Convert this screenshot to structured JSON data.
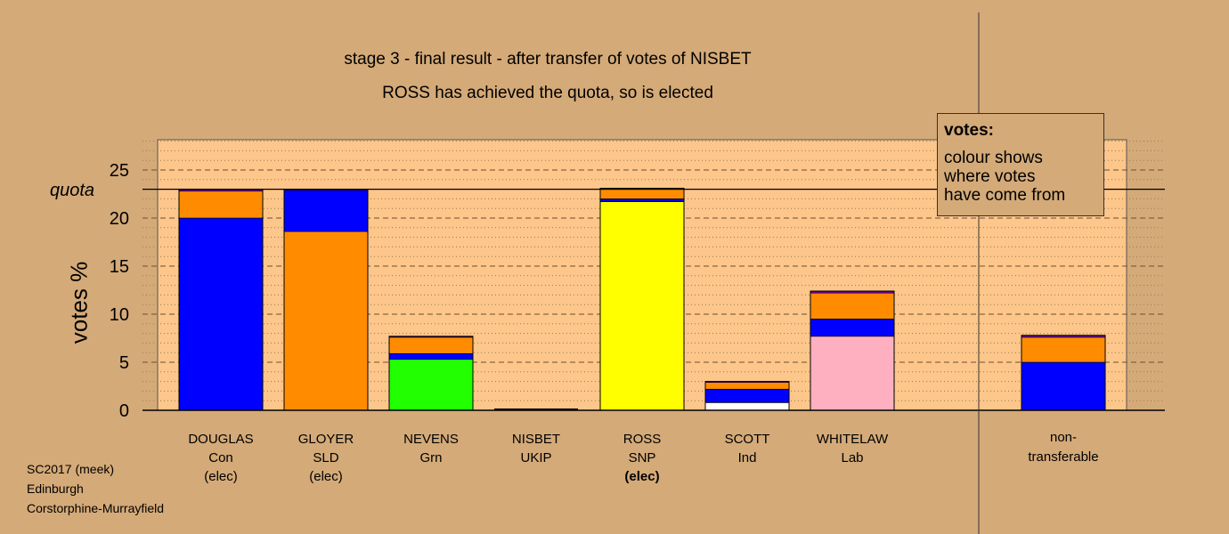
{
  "title": "stage 3 - final result - after transfer of votes of NISBET",
  "subtitle": "ROSS has achieved the quota, so is elected",
  "legend": {
    "heading": "votes:",
    "lines": [
      "colour shows",
      "where votes",
      "have come from"
    ]
  },
  "footer": [
    "SC2017 (meek)",
    "Edinburgh",
    "Corstorphine-Murrayfield"
  ],
  "colors": {
    "background": "#d4aa78",
    "plot_band": "#fdc68a",
    "Con": "#0000ff",
    "SLD": "#ff8c00",
    "Grn": "#22ff00",
    "SNP": "#ffff00",
    "Lab": "#ffb0c0",
    "Ind": "#ffffff",
    "UKIP": "#7a00a0"
  },
  "chart_data": {
    "type": "bar",
    "stacked": true,
    "ylabel": "votes %",
    "ylim": [
      0,
      28
    ],
    "yticks": [
      0,
      5,
      10,
      15,
      20,
      25
    ],
    "quota": 23.0,
    "quota_label": "quota",
    "categories": [
      {
        "name": "DOUGLAS",
        "party": "Con",
        "status": "(elec)",
        "status_bold": false
      },
      {
        "name": "GLOYER",
        "party": "SLD",
        "status": "(elec)",
        "status_bold": false
      },
      {
        "name": "NEVENS",
        "party": "Grn",
        "status": "",
        "status_bold": false
      },
      {
        "name": "NISBET",
        "party": "UKIP",
        "status": "",
        "status_bold": false
      },
      {
        "name": "ROSS",
        "party": "SNP",
        "status": "(elec)",
        "status_bold": true
      },
      {
        "name": "SCOTT",
        "party": "Ind",
        "status": "",
        "status_bold": false
      },
      {
        "name": "WHITELAW",
        "party": "Lab",
        "status": "",
        "status_bold": false
      }
    ],
    "bars": [
      {
        "segments": [
          {
            "from": "Con",
            "value": 20.0
          },
          {
            "from": "SLD",
            "value": 2.8
          },
          {
            "from": "UKIP",
            "value": 0.2
          }
        ]
      },
      {
        "segments": [
          {
            "from": "SLD",
            "value": 18.6
          },
          {
            "from": "Con",
            "value": 4.3
          },
          {
            "from": "UKIP",
            "value": 0.1
          }
        ]
      },
      {
        "segments": [
          {
            "from": "Grn",
            "value": 5.3
          },
          {
            "from": "Con",
            "value": 0.6
          },
          {
            "from": "SLD",
            "value": 1.7
          },
          {
            "from": "UKIP",
            "value": 0.1
          }
        ]
      },
      {
        "segments": []
      },
      {
        "segments": [
          {
            "from": "SNP",
            "value": 21.7
          },
          {
            "from": "Con",
            "value": 0.3
          },
          {
            "from": "SLD",
            "value": 1.0
          },
          {
            "from": "UKIP",
            "value": 0.1
          }
        ]
      },
      {
        "segments": [
          {
            "from": "Ind",
            "value": 0.8
          },
          {
            "from": "Con",
            "value": 1.4
          },
          {
            "from": "SLD",
            "value": 0.7
          },
          {
            "from": "UKIP",
            "value": 0.1
          }
        ]
      },
      {
        "segments": [
          {
            "from": "Lab",
            "value": 7.7
          },
          {
            "from": "Con",
            "value": 1.8
          },
          {
            "from": "SLD",
            "value": 2.7
          },
          {
            "from": "UKIP",
            "value": 0.2
          }
        ]
      }
    ],
    "nontransferable": {
      "label_lines": [
        "non-",
        "transferable"
      ],
      "segments": [
        {
          "from": "Con",
          "value": 5.0
        },
        {
          "from": "SLD",
          "value": 2.6
        },
        {
          "from": "UKIP",
          "value": 0.2
        }
      ]
    }
  }
}
